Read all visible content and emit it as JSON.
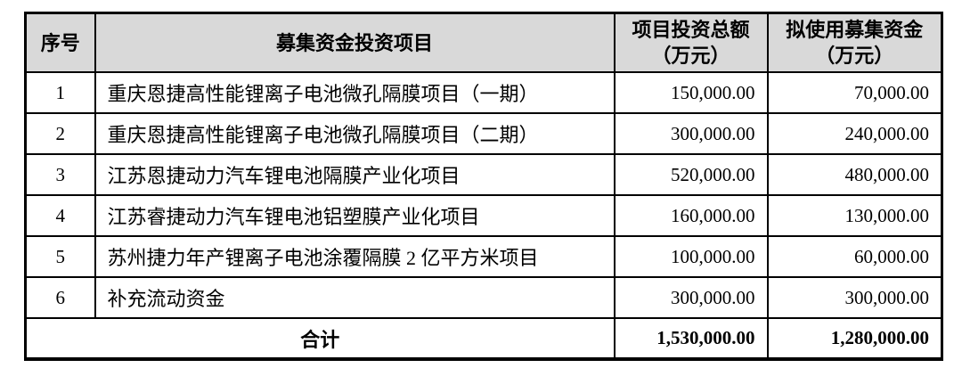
{
  "table": {
    "header_bg": "#d9d9d9",
    "border_color": "#000000",
    "columns": {
      "index": "序号",
      "project": "募集资金投资项目",
      "total_investment_line1": "项目投资总额",
      "total_investment_line2": "（万元）",
      "raised_funds_line1": "拟使用募集资金",
      "raised_funds_line2": "（万元）"
    },
    "rows": [
      {
        "index": "1",
        "project": "重庆恩捷高性能锂离子电池微孔隔膜项目（一期）",
        "total_investment": "150,000.00",
        "raised_funds": "70,000.00"
      },
      {
        "index": "2",
        "project": "重庆恩捷高性能锂离子电池微孔隔膜项目（二期）",
        "total_investment": "300,000.00",
        "raised_funds": "240,000.00"
      },
      {
        "index": "3",
        "project": "江苏恩捷动力汽车锂电池隔膜产业化项目",
        "total_investment": "520,000.00",
        "raised_funds": "480,000.00"
      },
      {
        "index": "4",
        "project": "江苏睿捷动力汽车锂电池铝塑膜产业化项目",
        "total_investment": "160,000.00",
        "raised_funds": "130,000.00"
      },
      {
        "index": "5",
        "project": "苏州捷力年产锂离子电池涂覆隔膜 2 亿平方米项目",
        "total_investment": "100,000.00",
        "raised_funds": "60,000.00"
      },
      {
        "index": "6",
        "project": "补充流动资金",
        "total_investment": "300,000.00",
        "raised_funds": "300,000.00"
      }
    ],
    "total_row": {
      "label": "合计",
      "total_investment": "1,530,000.00",
      "raised_funds": "1,280,000.00"
    }
  }
}
